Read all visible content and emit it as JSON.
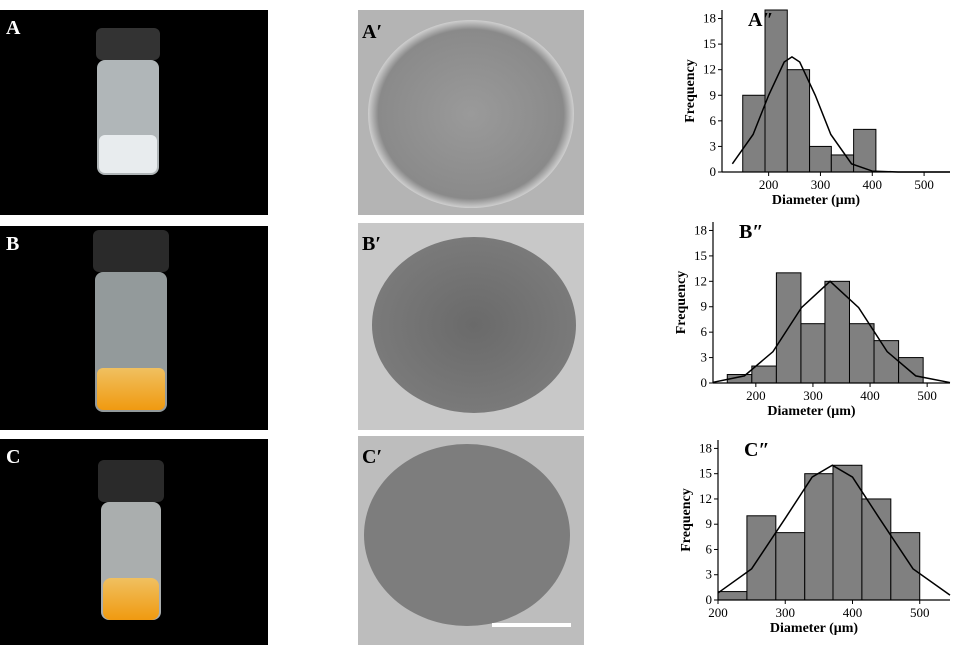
{
  "panels": [
    "A",
    "B",
    "C",
    "A′",
    "B′",
    "C′"
  ],
  "chart_data": [
    {
      "type": "histogram",
      "title": "A″",
      "xlabel": "Diameter (μm)",
      "ylabel": "Frequency",
      "bins": [
        150,
        193,
        236,
        279,
        321,
        364,
        407
      ],
      "counts": [
        9,
        19,
        12,
        3,
        2,
        5
      ],
      "color": "#808080",
      "curve": {
        "x": [
          130,
          170,
          200,
          230,
          245,
          260,
          290,
          320,
          360,
          400,
          450,
          550
        ],
        "values": [
          0.96,
          4.4,
          9.0,
          12.9,
          13.5,
          12.9,
          9.0,
          4.4,
          0.96,
          0.11,
          0,
          0
        ]
      },
      "xlim": [
        110,
        550
      ],
      "ylim": [
        0,
        19
      ],
      "xticks": [
        200,
        300,
        400,
        500
      ],
      "yticks": [
        0,
        3,
        6,
        9,
        12,
        15,
        18
      ]
    },
    {
      "type": "histogram",
      "title": "B″",
      "xlabel": "Diameter (μm)",
      "ylabel": "Frequency",
      "bins": [
        150,
        193,
        236,
        279,
        321,
        364,
        407,
        450,
        493
      ],
      "counts": [
        1,
        2,
        13,
        7,
        12,
        7,
        5,
        3
      ],
      "color": "#808080",
      "curve": {
        "x": [
          125,
          180,
          230,
          280,
          330,
          380,
          430,
          480,
          540
        ],
        "values": [
          0.08,
          0.84,
          3.7,
          8.9,
          12,
          8.9,
          3.7,
          0.84,
          0.05
        ]
      },
      "xlim": [
        125,
        540
      ],
      "ylim": [
        0,
        19
      ],
      "xticks": [
        200,
        300,
        400,
        500
      ],
      "yticks": [
        0,
        3,
        6,
        9,
        12,
        15,
        18
      ]
    },
    {
      "type": "histogram",
      "title": "C″",
      "xlabel": "Diameter (μm)",
      "ylabel": "Frequency",
      "bins": [
        200,
        243,
        286,
        329,
        371,
        414,
        457,
        500
      ],
      "counts": [
        1,
        10,
        8,
        15,
        16,
        12,
        8
      ],
      "color": "#808080",
      "curve": {
        "x": [
          200,
          250,
          300,
          340,
          370,
          400,
          440,
          490,
          545
        ],
        "values": [
          0.84,
          3.7,
          9.7,
          14.6,
          16,
          14.6,
          9.7,
          3.7,
          0.58
        ]
      },
      "xlim": [
        200,
        545
      ],
      "ylim": [
        0,
        19
      ],
      "xticks": [
        200,
        300,
        400,
        500
      ],
      "yticks": [
        0,
        3,
        6,
        9,
        12,
        15,
        18
      ]
    }
  ]
}
